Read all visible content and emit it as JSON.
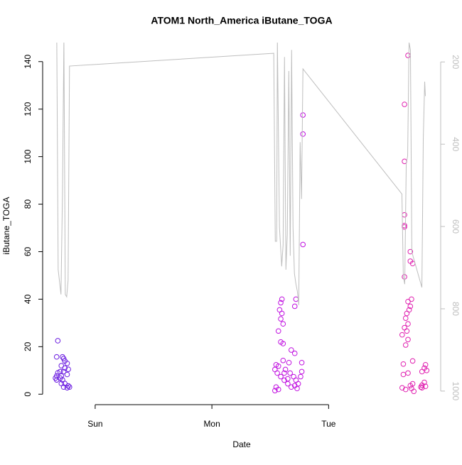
{
  "chart_data": {
    "type": "scatter",
    "title": "ATOM1 North_America iButane_TOGA",
    "x_label": "Date",
    "y_label": "iButane_TOGA",
    "xlim": [
      -0.45,
      2.96
    ],
    "xticks": [
      {
        "value": 0,
        "label": "Sun"
      },
      {
        "value": 1,
        "label": "Mon"
      },
      {
        "value": 2,
        "label": "Tue"
      }
    ],
    "ylim": [
      -4.4,
      148
    ],
    "yticks": [
      0,
      20,
      40,
      60,
      80,
      100,
      120,
      140
    ],
    "y2lim": [
      1033,
      153
    ],
    "y2ticks": [
      200,
      400,
      600,
      800,
      1000
    ],
    "y2_color": "#bebebe",
    "series": [
      {
        "color": "#6a1be0",
        "x": [
          -0.32,
          -0.33,
          -0.28,
          -0.27,
          -0.26,
          -0.29,
          -0.24,
          -0.3,
          -0.32,
          -0.33,
          -0.34,
          -0.29,
          -0.27,
          -0.23,
          -0.28,
          -0.26,
          -0.29,
          -0.27,
          -0.24,
          -0.23,
          -0.22,
          -0.3,
          -0.33,
          -0.26,
          -0.24
        ],
        "values": [
          22.5,
          15.7,
          15.7,
          15,
          14,
          12,
          13,
          9.5,
          9,
          7.7,
          6.8,
          7.7,
          9.5,
          10.5,
          6,
          4.5,
          4.5,
          3,
          2.7,
          3.5,
          3,
          6.8,
          6,
          11,
          8.3
        ]
      },
      {
        "color": "#c010e0",
        "x": [
          1.6,
          1.59,
          1.58,
          1.6,
          1.59,
          1.61,
          1.57,
          1.59,
          1.61,
          1.55,
          1.57,
          1.54,
          1.56,
          1.59,
          1.62,
          1.65,
          1.55,
          1.57,
          1.54,
          1.67,
          1.7,
          1.72,
          1.74,
          1.66,
          1.63,
          1.68,
          1.71,
          1.73,
          1.76,
          1.77,
          1.68,
          1.71,
          1.72,
          1.71,
          1.77,
          1.78,
          1.78,
          1.78,
          1.65,
          1.62,
          1.61
        ],
        "values": [
          40,
          38.5,
          35.5,
          34,
          31.7,
          29.6,
          26.6,
          22,
          21.3,
          12.4,
          11.8,
          10.4,
          8.9,
          7.4,
          5.9,
          4.4,
          3,
          2,
          1.5,
          8.9,
          7.4,
          5.9,
          4.4,
          13.3,
          10.4,
          3,
          3.6,
          2.4,
          7.4,
          9.5,
          18.6,
          17.2,
          40,
          37,
          13.3,
          117.5,
          109.5,
          63,
          6.5,
          8.9,
          14.2
        ]
      },
      {
        "color": "#e020b0",
        "x": [
          2.68,
          2.65,
          2.65,
          2.65,
          2.65,
          2.65,
          2.7,
          2.7,
          2.72,
          2.65,
          2.71,
          2.68,
          2.7,
          2.69,
          2.67,
          2.66,
          2.68,
          2.65,
          2.67,
          2.63,
          2.68,
          2.66,
          2.72,
          2.64,
          2.68,
          2.64,
          2.83,
          2.82,
          2.8,
          2.84,
          2.82,
          2.8,
          2.83,
          2.79,
          2.8,
          2.63,
          2.66,
          2.71,
          2.73,
          2.72,
          2.7
        ],
        "values": [
          142.6,
          122,
          98,
          75.5,
          71,
          70.4,
          60,
          56,
          55,
          49.4,
          40,
          39,
          37,
          35.5,
          34,
          32,
          29.6,
          28,
          26.6,
          25,
          23,
          20.7,
          14,
          12.7,
          8.9,
          8.3,
          12.4,
          11,
          9.5,
          10,
          5,
          3.8,
          3.3,
          3,
          2.7,
          2.7,
          2,
          2.4,
          1.2,
          4.4,
          3.6
        ]
      },
      {
        "color": "#bebebe",
        "axis": "y2",
        "type": "line",
        "x": [
          -0.329,
          -0.317,
          -0.293,
          -0.28,
          -0.268,
          -0.256,
          -0.244,
          -0.232,
          -0.22,
          1.53,
          1.543,
          1.555,
          1.561,
          1.579,
          1.598,
          1.61,
          1.622,
          1.634,
          1.646,
          1.659,
          1.671,
          1.683,
          1.695,
          1.707,
          1.72,
          1.732,
          1.744,
          1.756,
          1.768,
          1.78,
          2.628,
          2.64,
          2.652,
          2.665,
          2.677,
          2.689,
          2.701,
          2.713,
          2.799,
          2.811,
          2.823,
          2.829
        ],
        "values": [
          145,
          705,
          765,
          516,
          145,
          765,
          771,
          731,
          210,
          179,
          636,
          636,
          145,
          602,
          697,
          645,
          188,
          705,
          619,
          222,
          671,
          171,
          602,
          714,
          740,
          757,
          791,
          395,
          533,
          217,
          521,
          722,
          740,
          447,
          429,
          153,
          171,
          662,
          748,
          386,
          248,
          283
        ]
      }
    ]
  }
}
